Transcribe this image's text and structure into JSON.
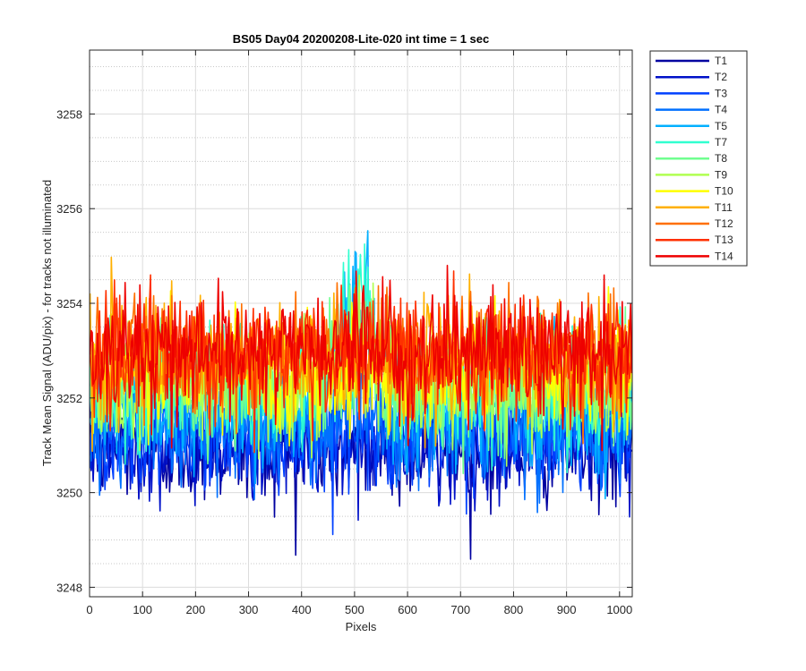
{
  "chart_data": {
    "type": "line",
    "title": "BS05 Day04 20200208-Lite-020 int time = 1 sec",
    "xlabel": "Pixels",
    "ylabel": "Track Mean Signal (ADU/pix) - for tracks not illuminated",
    "xlim": [
      0,
      1024
    ],
    "ylim": [
      3247.8,
      3259.35
    ],
    "xticks": [
      0,
      100,
      200,
      300,
      400,
      500,
      600,
      700,
      800,
      900,
      1000
    ],
    "yticks": [
      3248,
      3250,
      3252,
      3254,
      3256,
      3258
    ],
    "xtick_labels": [
      "0",
      "100",
      "200",
      "300",
      "400",
      "500",
      "600",
      "700",
      "800",
      "900",
      "1000"
    ],
    "ytick_labels": [
      "3248",
      "3250",
      "3252",
      "3254",
      "3256",
      "3258"
    ],
    "grid": "major solid, minor dotted",
    "legend_position": "outside-right",
    "series": [
      {
        "name": "T1",
        "color": "#0000a0",
        "mean": 3250.9,
        "noise": 0.55,
        "bump": 0.0
      },
      {
        "name": "T2",
        "color": "#0011c8",
        "mean": 3251.0,
        "noise": 0.55,
        "bump": 0.0
      },
      {
        "name": "T3",
        "color": "#0040ff",
        "mean": 3251.2,
        "noise": 0.55,
        "bump": 0.3
      },
      {
        "name": "T4",
        "color": "#0070ff",
        "mean": 3251.3,
        "noise": 0.55,
        "bump": 0.8
      },
      {
        "name": "T5",
        "color": "#00b0ff",
        "mean": 3251.8,
        "noise": 0.6,
        "bump": 2.6
      },
      {
        "name": "T7",
        "color": "#30ffd0",
        "mean": 3252.2,
        "noise": 0.6,
        "bump": 1.8
      },
      {
        "name": "T8",
        "color": "#70ff90",
        "mean": 3252.2,
        "noise": 0.6,
        "bump": 1.0
      },
      {
        "name": "T9",
        "color": "#b0ff50",
        "mean": 3252.3,
        "noise": 0.6,
        "bump": 0.5
      },
      {
        "name": "T10",
        "color": "#ffff00",
        "mean": 3252.6,
        "noise": 0.6,
        "bump": 0.2
      },
      {
        "name": "T11",
        "color": "#ffb000",
        "mean": 3252.8,
        "noise": 0.6,
        "bump": 0.0
      },
      {
        "name": "T12",
        "color": "#ff7000",
        "mean": 3252.9,
        "noise": 0.6,
        "bump": 0.0
      },
      {
        "name": "T13",
        "color": "#ff3000",
        "mean": 3252.9,
        "noise": 0.6,
        "bump": 0.0
      },
      {
        "name": "T14",
        "color": "#ee0000",
        "mean": 3253.0,
        "noise": 0.6,
        "bump": 0.0
      }
    ]
  }
}
